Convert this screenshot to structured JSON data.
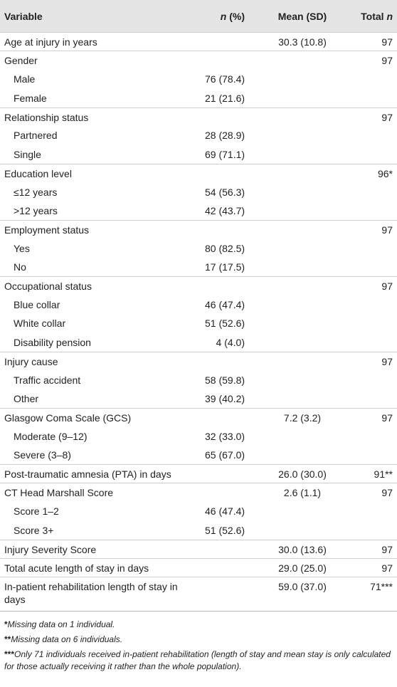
{
  "table": {
    "header": [
      [
        "Variable"
      ],
      [
        "n",
        " (%)"
      ],
      [
        "Mean (SD)"
      ],
      [
        "Total ",
        "n"
      ]
    ],
    "rows": [
      {
        "label": "Age at injury in years",
        "mean": "30.3 (10.8)",
        "total": "97"
      },
      {
        "label": "Gender",
        "total": "97"
      },
      {
        "label": "Male",
        "n": "76 (78.4)",
        "sub": true
      },
      {
        "label": "Female",
        "n": "21 (21.6)",
        "sub": true
      },
      {
        "label": "Relationship status",
        "total": "97"
      },
      {
        "label": "Partnered",
        "n": "28 (28.9)",
        "sub": true
      },
      {
        "label": "Single",
        "n": "69 (71.1)",
        "sub": true
      },
      {
        "label": "Education level",
        "total": "96*"
      },
      {
        "label": "≤12 years",
        "n": "54 (56.3)",
        "sub": true
      },
      {
        "label": ">12 years",
        "n": "42 (43.7)",
        "sub": true
      },
      {
        "label": "Employment status",
        "total": "97"
      },
      {
        "label": "Yes",
        "n": "80 (82.5)",
        "sub": true
      },
      {
        "label": "No",
        "n": "17 (17.5)",
        "sub": true
      },
      {
        "label": "Occupational status",
        "total": "97"
      },
      {
        "label": "Blue collar",
        "n": "46 (47.4)",
        "sub": true
      },
      {
        "label": "White collar",
        "n": "51 (52.6)",
        "sub": true
      },
      {
        "label": "Disability pension",
        "n": "4 (4.0)",
        "sub": true
      },
      {
        "label": "Injury cause",
        "total": "97"
      },
      {
        "label": "Traffic accident",
        "n": "58 (59.8)",
        "sub": true
      },
      {
        "label": "Other",
        "n": "39 (40.2)",
        "sub": true
      },
      {
        "label": "Glasgow Coma Scale (GCS)",
        "mean": "7.2 (3.2)",
        "total": "97"
      },
      {
        "label": "Moderate (9–12)",
        "n": "32 (33.0)",
        "sub": true
      },
      {
        "label": "Severe (3–8)",
        "n": "65 (67.0)",
        "sub": true
      },
      {
        "label": "Post-traumatic amnesia (PTA) in days",
        "mean": "26.0 (30.0)",
        "total": "91**"
      },
      {
        "label": "CT Head Marshall Score",
        "mean": "2.6 (1.1)",
        "total": "97"
      },
      {
        "label": "Score 1–2",
        "n": "46 (47.4)",
        "sub": true
      },
      {
        "label": "Score 3+",
        "n": "51 (52.6)",
        "sub": true
      },
      {
        "label": "Injury Severity Score",
        "mean": "30.0 (13.6)",
        "total": "97"
      },
      {
        "label": "Total acute length of stay in days",
        "mean": "29.0 (25.0)",
        "total": "97"
      },
      {
        "label": "In-patient rehabilitation length of stay in days",
        "mean": "59.0 (37.0)",
        "total": "71***"
      }
    ],
    "footnotes": [
      [
        "*",
        "Missing data on 1 individual."
      ],
      [
        "**",
        "Missing data on 6 individuals."
      ],
      [
        "***",
        "Only 71 individuals received in-patient rehabilitation (length of stay and mean stay is only calculated for those actually receiving it rather than the whole population)."
      ]
    ]
  }
}
